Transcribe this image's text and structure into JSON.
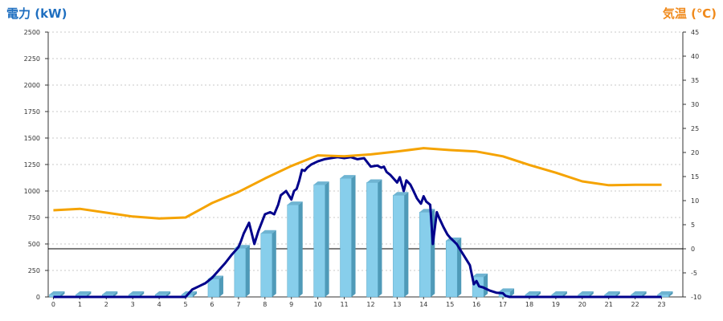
{
  "chart_data": {
    "type": "bar",
    "title": "",
    "ylabel_left": "電力 (kW)",
    "ylabel_right": "気温 (℃)",
    "categories": [
      "0",
      "1",
      "2",
      "3",
      "4",
      "5",
      "6",
      "7",
      "8",
      "9",
      "10",
      "11",
      "12",
      "13",
      "14",
      "15",
      "16",
      "17",
      "18",
      "19",
      "20",
      "21",
      "22",
      "23"
    ],
    "ylim_left": [
      0,
      2500
    ],
    "yticks_left": [
      "0",
      "250",
      "500",
      "750",
      "1000",
      "1250",
      "1500",
      "1750",
      "2000",
      "2250",
      "2500"
    ],
    "ylim_right": [
      -10,
      45
    ],
    "yticks_right": [
      "-10",
      "-5",
      "0",
      "5",
      "10",
      "15",
      "20",
      "25",
      "30",
      "35",
      "40",
      "45"
    ],
    "grid": "horizontal dotted",
    "colors": {
      "bars": "#87ceeb",
      "power_line": "#00008b",
      "temperature_line": "#f5a300",
      "left_title": "#1f6fc0",
      "right_title": "#f08a1c"
    },
    "series": [
      {
        "kind": "bar",
        "axis": "left",
        "values": [
          0,
          0,
          0,
          0,
          0,
          0,
          170,
          460,
          600,
          870,
          1060,
          1120,
          1080,
          960,
          800,
          530,
          190,
          50,
          0,
          0,
          0,
          0,
          0,
          0
        ]
      },
      {
        "kind": "line",
        "axis": "left",
        "x": [
          0,
          1,
          2,
          3,
          4,
          5,
          5.25,
          5.5,
          5.75,
          6,
          6.25,
          6.5,
          6.75,
          7,
          7.1,
          7.2,
          7.3,
          7.4,
          7.5,
          7.6,
          7.75,
          8,
          8.2,
          8.35,
          8.5,
          8.6,
          8.8,
          9,
          9.1,
          9.2,
          9.3,
          9.4,
          9.5,
          9.6,
          9.75,
          10,
          10.25,
          10.5,
          10.75,
          11,
          11.25,
          11.5,
          11.75,
          12,
          12.25,
          12.4,
          12.5,
          12.6,
          12.75,
          13,
          13.1,
          13.25,
          13.35,
          13.5,
          13.6,
          13.75,
          13.9,
          14,
          14.1,
          14.25,
          14.35,
          14.5,
          14.6,
          14.75,
          14.9,
          15,
          15.25,
          15.5,
          15.75,
          15.9,
          16,
          16.1,
          16.25,
          16.5,
          16.75,
          17,
          17.1,
          17.25,
          17.5,
          18,
          19,
          20,
          21,
          22,
          23
        ],
        "values": [
          0,
          0,
          0,
          0,
          0,
          0,
          70,
          100,
          130,
          180,
          250,
          320,
          400,
          470,
          530,
          600,
          650,
          700,
          600,
          500,
          620,
          780,
          800,
          780,
          870,
          960,
          1000,
          920,
          1000,
          1020,
          1100,
          1200,
          1190,
          1220,
          1250,
          1280,
          1300,
          1310,
          1320,
          1310,
          1320,
          1300,
          1310,
          1230,
          1240,
          1220,
          1230,
          1180,
          1150,
          1080,
          1130,
          1000,
          1100,
          1060,
          1010,
          930,
          880,
          950,
          900,
          870,
          500,
          800,
          740,
          660,
          590,
          560,
          500,
          400,
          300,
          120,
          150,
          100,
          90,
          60,
          40,
          35,
          10,
          0,
          0,
          0,
          0,
          0,
          0,
          0,
          0
        ]
      },
      {
        "kind": "line",
        "axis": "right",
        "x": [
          0,
          1,
          2,
          3,
          4,
          5,
          6,
          7,
          8,
          9,
          10,
          11,
          12,
          13,
          14,
          15,
          16,
          17,
          18,
          19,
          20,
          21,
          22,
          23
        ],
        "values": [
          8,
          8.3,
          7.5,
          6.7,
          6.3,
          6.5,
          9.5,
          11.8,
          14.6,
          17.2,
          19.4,
          19.2,
          19.6,
          20.2,
          20.9,
          20.5,
          20.2,
          19.2,
          17.4,
          15.8,
          14,
          13.2,
          13.3,
          13.3
        ]
      }
    ]
  }
}
